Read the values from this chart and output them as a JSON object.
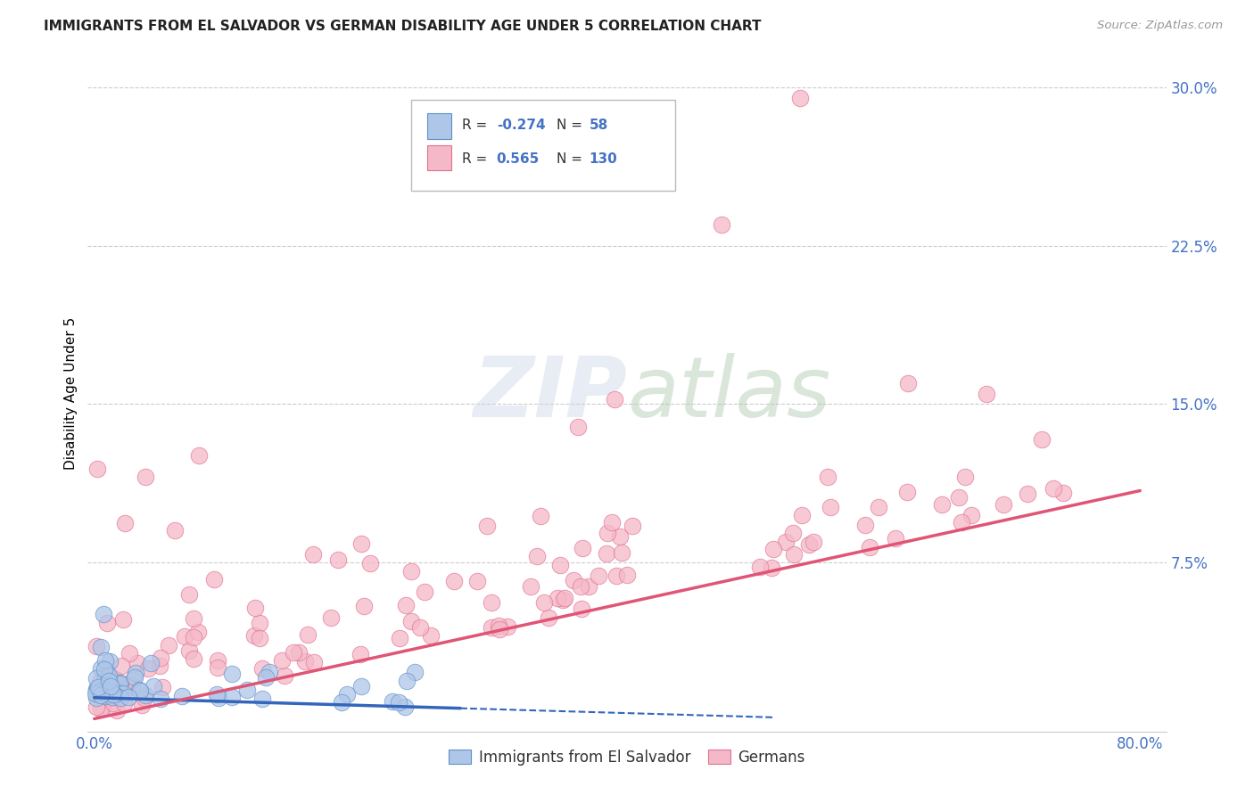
{
  "title": "IMMIGRANTS FROM EL SALVADOR VS GERMAN DISABILITY AGE UNDER 5 CORRELATION CHART",
  "source": "Source: ZipAtlas.com",
  "ylabel": "Disability Age Under 5",
  "xlim": [
    -0.005,
    0.82
  ],
  "ylim": [
    -0.005,
    0.315
  ],
  "yticks": [
    0.0,
    0.075,
    0.15,
    0.225,
    0.3
  ],
  "ytick_labels": [
    "",
    "7.5%",
    "15.0%",
    "22.5%",
    "30.0%"
  ],
  "xtick_labels": [
    "0.0%",
    "80.0%"
  ],
  "xticks": [
    0.0,
    0.8
  ],
  "watermark": "ZIPatlas",
  "blue_color": "#aec6e8",
  "pink_color": "#f5b8c8",
  "blue_edge_color": "#6090c8",
  "pink_edge_color": "#e07090",
  "blue_line_color": "#3366bb",
  "pink_line_color": "#e05575",
  "legend_blue_r": "R = -0.274",
  "legend_blue_n": "N =  58",
  "legend_pink_r": "R =  0.565",
  "legend_pink_n": "N = 130",
  "blue_trend_solid_end": 0.28,
  "blue_trend_dash_end": 0.52,
  "blue_intercept": 0.011,
  "blue_slope": -0.018,
  "pink_intercept": 0.001,
  "pink_slope": 0.135
}
